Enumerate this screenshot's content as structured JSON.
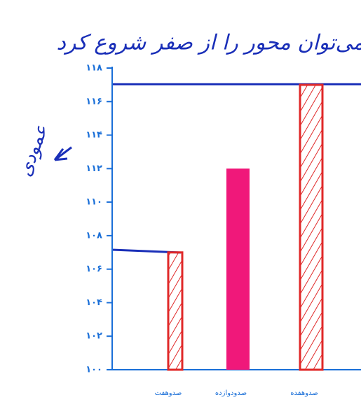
{
  "chart_data": {
    "type": "bar",
    "annotations": [
      "می‌توان محور را از صفر شروع کرد",
      "عمودی"
    ],
    "categories": [
      "صدوهفت",
      "صدودوازده",
      "صدوهفده"
    ],
    "values": [
      107,
      112,
      117
    ],
    "colors": [
      "#e02828",
      "#f0187a",
      "#e02828"
    ],
    "hatched": [
      true,
      false,
      true
    ],
    "ylim": [
      100,
      118
    ],
    "yticks": [
      {
        "value": 100,
        "label": "۱۰۰"
      },
      {
        "value": 102,
        "label": "۱۰۲"
      },
      {
        "value": 104,
        "label": "۱۰۴"
      },
      {
        "value": 106,
        "label": "۱۰۶"
      },
      {
        "value": 108,
        "label": "۱۰۸"
      },
      {
        "value": 110,
        "label": "۱۱۰"
      },
      {
        "value": 112,
        "label": "۱۱۲"
      },
      {
        "value": 114,
        "label": "۱۱۴"
      },
      {
        "value": 116,
        "label": "۱۱۶"
      },
      {
        "value": 118,
        "label": "۱۱۸"
      }
    ]
  }
}
